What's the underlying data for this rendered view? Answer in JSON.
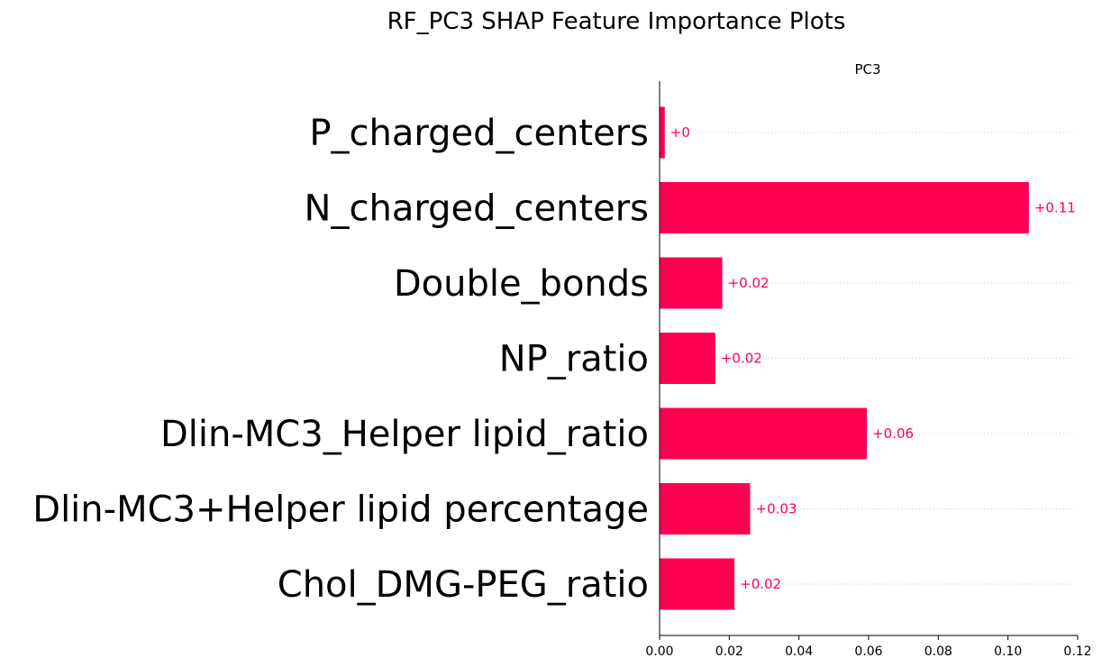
{
  "chart_data": {
    "type": "bar",
    "orientation": "horizontal",
    "title": "RF_PC3 SHAP Feature Importance Plots",
    "subtitle": "PC3",
    "categories": [
      "P_charged_centers",
      "N_charged_centers",
      "Double_bonds",
      "NP_ratio",
      "Dlin-MC3_Helper lipid_ratio",
      "Dlin-MC3+Helper lipid percentage",
      "Chol_DMG-PEG_ratio"
    ],
    "values": [
      0.0015,
      0.106,
      0.018,
      0.016,
      0.0595,
      0.026,
      0.0215
    ],
    "data_labels": [
      "+0",
      "+0.11",
      "+0.02",
      "+0.02",
      "+0.06",
      "+0.03",
      "+0.02"
    ],
    "xlim": [
      0,
      0.12
    ],
    "xticks": [
      "0.00",
      "0.02",
      "0.04",
      "0.06",
      "0.08",
      "0.10",
      "0.12"
    ],
    "xlabel": "",
    "ylabel": "",
    "bar_color": "#ff0051",
    "label_color": "#ff0051",
    "gridline_color": "#cccccc",
    "grid": "dotted horizontal lines"
  }
}
